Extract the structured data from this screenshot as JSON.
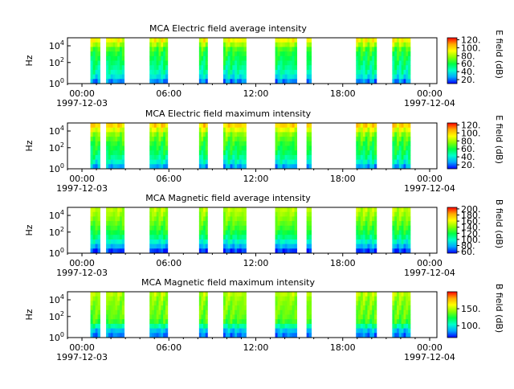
{
  "colors": {
    "colormap": [
      "#0000ff",
      "#00a8ff",
      "#00ffcc",
      "#00ff44",
      "#88ff00",
      "#ffff00",
      "#ffaa00",
      "#ff0000"
    ]
  },
  "chart_data": [
    {
      "type": "heatmap",
      "title": "MCA  Electric field average intensity",
      "ylabel": "Hz",
      "y_ticks": [
        {
          "base": "10",
          "exp": "0"
        },
        {
          "base": "10",
          "exp": "2"
        },
        {
          "base": "10",
          "exp": "4"
        }
      ],
      "x_ticks": [
        "00:00",
        "06:00",
        "12:00",
        "18:00",
        "00:00"
      ],
      "x_dates": [
        "1997-12-03",
        "1997-12-04"
      ],
      "colorbar_label": "E field (dB)",
      "colorbar_ticks": [
        "20.",
        "40.",
        "60.",
        "80.",
        "100.",
        "120."
      ],
      "colorbar_range": [
        10,
        125
      ],
      "colorbar_tick_values": [
        20,
        40,
        60,
        80,
        100,
        120
      ],
      "profile": [
        92,
        80,
        68,
        62,
        58,
        54,
        50,
        45,
        38,
        24
      ]
    },
    {
      "type": "heatmap",
      "title": "MCA  Electric field maximum intensity",
      "ylabel": "Hz",
      "y_ticks": [
        {
          "base": "10",
          "exp": "0"
        },
        {
          "base": "10",
          "exp": "2"
        },
        {
          "base": "10",
          "exp": "4"
        }
      ],
      "x_ticks": [
        "00:00",
        "06:00",
        "12:00",
        "18:00",
        "00:00"
      ],
      "x_dates": [
        "1997-12-03",
        "1997-12-04"
      ],
      "colorbar_label": "E field (dB)",
      "colorbar_ticks": [
        "20.",
        "40.",
        "60.",
        "80.",
        "100.",
        "120."
      ],
      "colorbar_range": [
        10,
        125
      ],
      "colorbar_tick_values": [
        20,
        40,
        60,
        80,
        100,
        120
      ],
      "profile": [
        100,
        88,
        76,
        70,
        64,
        60,
        56,
        50,
        42,
        28
      ]
    },
    {
      "type": "heatmap",
      "title": "MCA  Magnetic field average intensity",
      "ylabel": "Hz",
      "y_ticks": [
        {
          "base": "10",
          "exp": "0"
        },
        {
          "base": "10",
          "exp": "2"
        },
        {
          "base": "10",
          "exp": "4"
        }
      ],
      "x_ticks": [
        "00:00",
        "06:00",
        "12:00",
        "18:00",
        "00:00"
      ],
      "x_dates": [
        "1997-12-03",
        "1997-12-04"
      ],
      "colorbar_label": "B field (dB)",
      "colorbar_ticks": [
        "60.",
        "80.",
        "100.",
        "120.",
        "140.",
        "160.",
        "180.",
        "200."
      ],
      "colorbar_range": [
        55,
        205
      ],
      "colorbar_tick_values": [
        60,
        80,
        100,
        120,
        140,
        160,
        180,
        200
      ],
      "profile": [
        150,
        145,
        140,
        134,
        128,
        120,
        110,
        96,
        80,
        62
      ]
    },
    {
      "type": "heatmap",
      "title": "MCA  Magnetic field maximum intensity",
      "ylabel": "Hz",
      "y_ticks": [
        {
          "base": "10",
          "exp": "0"
        },
        {
          "base": "10",
          "exp": "2"
        },
        {
          "base": "10",
          "exp": "4"
        }
      ],
      "x_ticks": [
        "00:00",
        "06:00",
        "12:00",
        "18:00",
        "00:00"
      ],
      "x_dates": [
        "1997-12-03",
        "1997-12-04"
      ],
      "colorbar_label": "B field (dB)",
      "colorbar_ticks": [
        "100.",
        "150."
      ],
      "colorbar_range": [
        65,
        200
      ],
      "colorbar_tick_values": [
        100,
        150
      ],
      "profile": [
        150,
        145,
        142,
        140,
        138,
        136,
        130,
        110,
        90,
        80
      ]
    }
  ],
  "data_segments": [
    {
      "start": "00:35",
      "end": "01:15"
    },
    {
      "start": "01:40",
      "end": "02:55"
    },
    {
      "start": "04:40",
      "end": "05:55"
    },
    {
      "start": "08:05",
      "end": "08:40"
    },
    {
      "start": "09:45",
      "end": "11:20"
    },
    {
      "start": "13:20",
      "end": "14:50"
    },
    {
      "start": "15:30",
      "end": "15:50"
    },
    {
      "start": "18:55",
      "end": "20:20"
    },
    {
      "start": "21:25",
      "end": "22:40"
    }
  ]
}
